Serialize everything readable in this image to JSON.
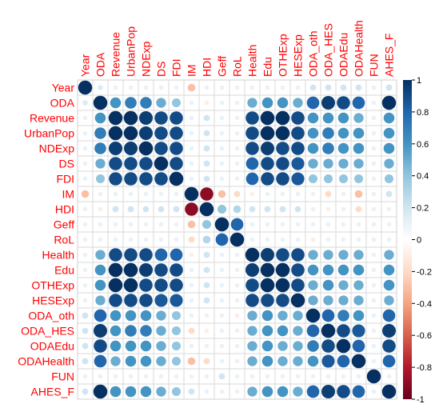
{
  "chart_data": {
    "type": "heatmap",
    "title": "",
    "variables": [
      "Year",
      "ODA",
      "Revenue",
      "UrbanPop",
      "NDExp",
      "DS",
      "FDI",
      "IM",
      "HDI",
      "Geff",
      "RoL",
      "Health",
      "Edu",
      "OTHExp",
      "HESExp",
      "ODA_oth",
      "ODA_HES",
      "ODAEdu",
      "ODAHealth",
      "FUN",
      "AHES_F"
    ],
    "matrix": [
      [
        1.0,
        0.15,
        0.1,
        0.1,
        0.1,
        0.1,
        0.1,
        -0.3,
        0.1,
        0.1,
        0.1,
        0.1,
        0.1,
        0.1,
        0.1,
        0.2,
        0.2,
        0.2,
        0.2,
        0.1,
        0.2
      ],
      [
        0.15,
        1.0,
        0.6,
        0.7,
        0.7,
        0.5,
        0.4,
        0.1,
        -0.1,
        0.1,
        0.1,
        0.5,
        0.6,
        0.6,
        0.5,
        0.8,
        0.95,
        0.9,
        0.8,
        0.1,
        1.0
      ],
      [
        0.1,
        0.6,
        1.0,
        1.0,
        0.95,
        0.9,
        0.9,
        0.1,
        0.2,
        0.1,
        0.1,
        0.9,
        1.0,
        1.0,
        0.9,
        0.6,
        0.6,
        0.6,
        0.5,
        0.1,
        0.6
      ],
      [
        0.1,
        0.7,
        1.0,
        1.0,
        0.95,
        0.9,
        0.9,
        0.1,
        0.2,
        0.1,
        0.1,
        0.9,
        1.0,
        1.0,
        0.9,
        0.6,
        0.7,
        0.6,
        0.6,
        0.1,
        0.6
      ],
      [
        0.1,
        0.7,
        0.95,
        0.95,
        1.0,
        0.9,
        0.9,
        0.1,
        0.2,
        0.1,
        0.1,
        0.9,
        0.95,
        0.9,
        0.9,
        0.6,
        0.7,
        0.6,
        0.6,
        0.1,
        0.6
      ],
      [
        0.1,
        0.5,
        0.9,
        0.9,
        0.9,
        1.0,
        0.9,
        0.1,
        0.2,
        0.1,
        0.1,
        0.8,
        0.9,
        0.9,
        0.85,
        0.5,
        0.5,
        0.5,
        0.5,
        0.1,
        0.5
      ],
      [
        0.1,
        0.4,
        0.9,
        0.9,
        0.9,
        0.9,
        1.0,
        0.1,
        0.2,
        0.1,
        0.1,
        0.8,
        0.9,
        0.9,
        0.85,
        0.4,
        0.4,
        0.4,
        0.4,
        0.1,
        0.4
      ],
      [
        -0.3,
        0.1,
        0.1,
        0.1,
        0.1,
        0.1,
        0.1,
        1.0,
        -0.9,
        -0.3,
        -0.2,
        -0.1,
        0.1,
        0.1,
        0.1,
        0.1,
        -0.2,
        0.1,
        -0.3,
        0.1,
        0.2
      ],
      [
        0.1,
        -0.1,
        0.2,
        0.2,
        0.2,
        0.2,
        0.2,
        -0.9,
        1.0,
        0.4,
        0.3,
        0.2,
        0.2,
        0.2,
        0.2,
        0.1,
        -0.1,
        0.1,
        -0.2,
        0.1,
        0.1
      ],
      [
        0.1,
        0.1,
        0.1,
        0.1,
        0.1,
        0.1,
        0.1,
        -0.3,
        0.4,
        1.0,
        0.8,
        0.1,
        0.1,
        0.1,
        0.1,
        0.1,
        0.1,
        0.1,
        0.1,
        0.1,
        0.1
      ],
      [
        0.1,
        0.1,
        0.1,
        0.1,
        0.1,
        0.1,
        0.1,
        -0.2,
        0.3,
        0.8,
        1.0,
        0.1,
        0.1,
        0.1,
        0.1,
        -0.1,
        0.1,
        0.1,
        0.1,
        0.1,
        0.1
      ],
      [
        0.1,
        0.5,
        0.9,
        0.9,
        0.9,
        0.8,
        0.8,
        -0.1,
        0.2,
        0.1,
        0.1,
        1.0,
        0.95,
        0.9,
        0.9,
        0.5,
        0.5,
        0.5,
        0.5,
        0.1,
        0.5
      ],
      [
        0.1,
        0.6,
        1.0,
        1.0,
        0.95,
        0.9,
        0.9,
        0.1,
        0.2,
        0.1,
        0.1,
        0.95,
        1.0,
        1.0,
        0.9,
        0.6,
        0.6,
        0.6,
        0.6,
        0.1,
        0.6
      ],
      [
        0.1,
        0.6,
        1.0,
        1.0,
        0.9,
        0.9,
        0.9,
        0.1,
        0.2,
        0.1,
        0.1,
        0.9,
        1.0,
        1.0,
        0.9,
        0.5,
        0.6,
        0.5,
        0.5,
        0.1,
        0.6
      ],
      [
        0.1,
        0.5,
        0.9,
        0.9,
        0.9,
        0.85,
        0.85,
        0.1,
        0.2,
        0.1,
        0.1,
        0.9,
        0.9,
        0.9,
        1.0,
        0.5,
        0.5,
        0.5,
        0.5,
        0.1,
        0.5
      ],
      [
        0.2,
        0.8,
        0.6,
        0.6,
        0.6,
        0.5,
        0.4,
        0.1,
        0.1,
        0.1,
        -0.1,
        0.5,
        0.6,
        0.5,
        0.5,
        1.0,
        0.8,
        0.7,
        0.6,
        0.1,
        0.8
      ],
      [
        0.2,
        0.95,
        0.6,
        0.7,
        0.7,
        0.5,
        0.4,
        -0.2,
        -0.1,
        0.1,
        0.1,
        0.5,
        0.6,
        0.6,
        0.5,
        0.8,
        1.0,
        0.9,
        0.85,
        0.1,
        0.95
      ],
      [
        0.2,
        0.9,
        0.6,
        0.6,
        0.6,
        0.5,
        0.4,
        0.1,
        0.1,
        0.1,
        0.1,
        0.5,
        0.6,
        0.5,
        0.5,
        0.7,
        0.9,
        1.0,
        0.8,
        0.1,
        0.9
      ],
      [
        0.2,
        0.8,
        0.5,
        0.6,
        0.6,
        0.5,
        0.4,
        -0.3,
        -0.2,
        0.1,
        0.1,
        0.5,
        0.6,
        0.5,
        0.5,
        0.6,
        0.85,
        0.8,
        1.0,
        0.1,
        0.8
      ],
      [
        0.1,
        0.1,
        0.1,
        0.1,
        0.1,
        0.1,
        0.1,
        0.1,
        0.1,
        0.2,
        0.1,
        0.1,
        0.1,
        0.1,
        0.1,
        0.1,
        0.1,
        0.1,
        0.1,
        1.0,
        0.1
      ],
      [
        0.2,
        1.0,
        0.6,
        0.6,
        0.6,
        0.5,
        0.4,
        0.2,
        0.1,
        0.1,
        0.1,
        0.5,
        0.6,
        0.6,
        0.5,
        0.8,
        0.95,
        0.9,
        0.8,
        0.1,
        1.0
      ]
    ],
    "colorbar": {
      "range": [
        -1,
        1
      ],
      "ticks": [
        "1",
        "0.8",
        "0.6",
        "0.4",
        "0.2",
        "0",
        "-0.2",
        "-0.4",
        "-0.6",
        "-0.8",
        "-1"
      ],
      "palette": [
        "#67001F",
        "#B2182B",
        "#D6604D",
        "#F4A582",
        "#FDDBC7",
        "#FFFFFF",
        "#D1E5F0",
        "#92C5DE",
        "#4393C3",
        "#2166AC",
        "#053061"
      ]
    },
    "label_color": "#FF0000",
    "grid": true
  }
}
